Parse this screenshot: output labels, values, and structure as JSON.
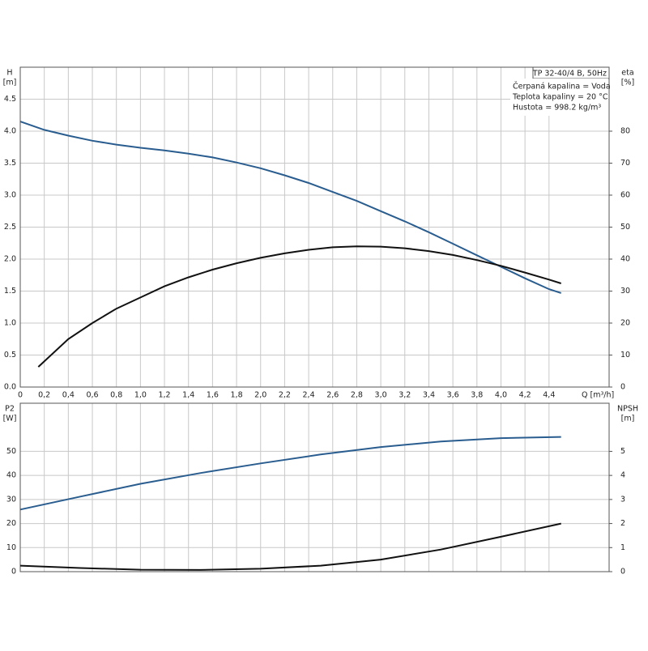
{
  "chart_data": [
    {
      "type": "line",
      "y_label": "H",
      "y_unit": "[m]",
      "y2_label": "eta",
      "y2_unit": "[%]",
      "x_label": "Q [m³/h]",
      "info": [
        "TP 32-40/4 B, 50Hz",
        "Čerpaná kapalina = Voda",
        "Teplota kapaliny = 20 °C",
        "Hustota = 998.2 kg/m³"
      ],
      "xlim": [
        0,
        4.9
      ],
      "xticks": [
        0,
        {
          "value": 0.2,
          "label": "0,2"
        },
        {
          "value": 0.4,
          "label": "0,4"
        },
        {
          "value": 0.6,
          "label": "0,6"
        },
        {
          "value": 0.8,
          "label": "0,8"
        },
        {
          "value": 1.0,
          "label": "1,0"
        },
        {
          "value": 1.2,
          "label": "1,2"
        },
        {
          "value": 1.4,
          "label": "1,4"
        },
        {
          "value": 1.6,
          "label": "1,6"
        },
        {
          "value": 1.8,
          "label": "1,8"
        },
        {
          "value": 2.0,
          "label": "2,0"
        },
        {
          "value": 2.2,
          "label": "2,2"
        },
        {
          "value": 2.4,
          "label": "2,4"
        },
        {
          "value": 2.6,
          "label": "2,6"
        },
        {
          "value": 2.8,
          "label": "2,8"
        },
        {
          "value": 3.0,
          "label": "3,0"
        },
        {
          "value": 3.2,
          "label": "3,2"
        },
        {
          "value": 3.4,
          "label": "3,4"
        },
        {
          "value": 3.6,
          "label": "3,6"
        },
        {
          "value": 3.8,
          "label": "3,8"
        },
        {
          "value": 4.0,
          "label": "4,0"
        },
        {
          "value": 4.2,
          "label": "4,2"
        },
        {
          "value": 4.4,
          "label": "4,4"
        }
      ],
      "ylim": [
        0,
        5
      ],
      "yticks": [
        {
          "value": 0,
          "label": "0.0"
        },
        0.5,
        {
          "value": 1,
          "label": "1.0"
        },
        1.5,
        {
          "value": 2,
          "label": "2.0"
        },
        2.5,
        {
          "value": 3,
          "label": "3.0"
        },
        3.5,
        {
          "value": 4,
          "label": "4.0"
        },
        4.5
      ],
      "y2lim": [
        0,
        100
      ],
      "y2ticks": [
        0,
        10,
        20,
        30,
        40,
        50,
        60,
        70,
        80
      ],
      "series": [
        {
          "color": "#2a5d8f",
          "x": [
            0,
            0.2,
            0.4,
            0.6,
            0.8,
            1.0,
            1.2,
            1.4,
            1.6,
            1.8,
            2.0,
            2.2,
            2.4,
            2.6,
            2.8,
            3.0,
            3.2,
            3.4,
            3.6,
            3.8,
            4.0,
            4.2,
            4.4,
            4.5
          ],
          "values": [
            4.15,
            4.02,
            3.93,
            3.85,
            3.79,
            3.74,
            3.7,
            3.65,
            3.59,
            3.51,
            3.42,
            3.31,
            3.19,
            3.05,
            2.91,
            2.75,
            2.59,
            2.42,
            2.24,
            2.06,
            1.88,
            1.7,
            1.53,
            1.47
          ]
        },
        {
          "color": "#111111",
          "axis": "y2",
          "x": [
            0.15,
            0.4,
            0.6,
            0.8,
            1.0,
            1.2,
            1.4,
            1.6,
            1.8,
            2.0,
            2.2,
            2.4,
            2.6,
            2.8,
            3.0,
            3.2,
            3.4,
            3.6,
            3.8,
            4.0,
            4.2,
            4.4,
            4.5
          ],
          "values": [
            6.3,
            15,
            20,
            24.5,
            28,
            31.5,
            34.3,
            36.7,
            38.7,
            40.4,
            41.8,
            42.9,
            43.7,
            44,
            43.9,
            43.4,
            42.5,
            41.3,
            39.7,
            37.9,
            35.8,
            33.6,
            32.4
          ]
        }
      ]
    },
    {
      "type": "line",
      "y_label": "P2",
      "y_unit": "[W]",
      "y2_label": "NPSH",
      "y2_unit": "[m]",
      "xlim": [
        0,
        4.9
      ],
      "ylim": [
        0,
        70
      ],
      "yticks": [
        0,
        10,
        20,
        30,
        40,
        50
      ],
      "y2lim": [
        0,
        7
      ],
      "y2ticks": [
        0,
        1,
        2,
        3,
        4,
        5
      ],
      "series": [
        {
          "color": "#2a5d8f",
          "x": [
            0,
            0.5,
            1.0,
            1.5,
            2.0,
            2.5,
            3.0,
            3.5,
            4.0,
            4.5
          ],
          "values": [
            25.8,
            31.2,
            36.5,
            41,
            45,
            48.7,
            51.8,
            54.1,
            55.5,
            56
          ]
        },
        {
          "color": "#111111",
          "axis": "y2",
          "x": [
            0,
            0.5,
            1.0,
            1.5,
            2.0,
            2.5,
            3.0,
            3.5,
            4.0,
            4.5
          ],
          "values": [
            0.25,
            0.15,
            0.08,
            0.07,
            0.12,
            0.25,
            0.5,
            0.92,
            1.45,
            2.0
          ]
        }
      ]
    }
  ]
}
